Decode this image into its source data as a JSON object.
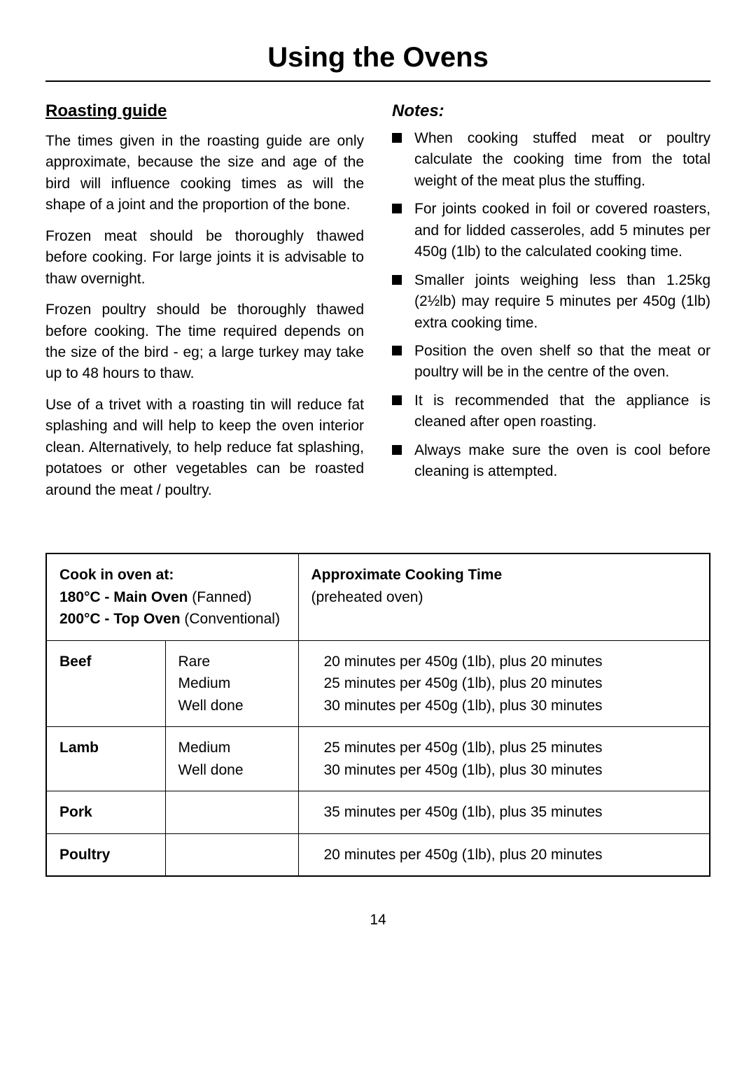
{
  "title": "Using the Ovens",
  "left": {
    "heading": "Roasting guide",
    "p1": "The times given in the roasting guide are only approximate, because the size and age of the bird will influence cooking times as will the shape of a joint and the proportion of the bone.",
    "p2": "Frozen meat should be thoroughly thawed before cooking.  For large joints it is advisable to thaw overnight.",
    "p3": "Frozen poultry should be thoroughly thawed before cooking.  The time required depends on the size of the bird - eg; a large turkey may take up to 48 hours to thaw.",
    "p4": "Use of a trivet with a roasting tin will reduce fat splashing and will help to keep the oven interior clean.  Alternatively, to help reduce fat splashing, potatoes or other vegetables can be roasted around the meat / poultry."
  },
  "right": {
    "heading": "Notes:",
    "notes": [
      "When cooking stuffed meat or poultry calculate the cooking time from the total weight of the meat plus the stuffing.",
      "For joints cooked in foil or covered roasters, and for lidded casseroles, add 5 minutes per 450g (1lb) to the calculated cooking time.",
      "Smaller joints weighing less than 1.25kg (2½lb) may require 5 minutes per 450g (1lb) extra cooking time.",
      "Position the oven shelf so that the meat or poultry will be in the centre of the oven.",
      "It is recommended that the appliance is cleaned after open roasting.",
      "Always make sure the oven is cool before cleaning is attempted."
    ]
  },
  "table": {
    "header_left_l1": "Cook in oven at:",
    "header_left_l2a": "180°C - Main Oven",
    "header_left_l2b": " (Fanned)",
    "header_left_l3a": "200°C - Top Oven",
    "header_left_l3b": " (Conventional)",
    "header_right_l1": "Approximate Cooking Time",
    "header_right_l2": "(preheated oven)",
    "rows": [
      {
        "meat": "Beef",
        "doneness": "Rare\nMedium\nWell done",
        "time": "20 minutes per 450g (1lb), plus 20 minutes\n25 minutes per 450g (1lb), plus 20 minutes\n30 minutes per 450g (1lb), plus 30 minutes"
      },
      {
        "meat": "Lamb",
        "doneness": "Medium\nWell done",
        "time": "25 minutes per 450g (1lb), plus 25 minutes\n30 minutes per 450g (1lb), plus 30 minutes"
      },
      {
        "meat": "Pork",
        "doneness": "",
        "time": "35 minutes per 450g (1lb), plus 35 minutes"
      },
      {
        "meat": "Poultry",
        "doneness": "",
        "time": "20 minutes per 450g (1lb), plus 20 minutes"
      }
    ]
  },
  "page_number": "14"
}
